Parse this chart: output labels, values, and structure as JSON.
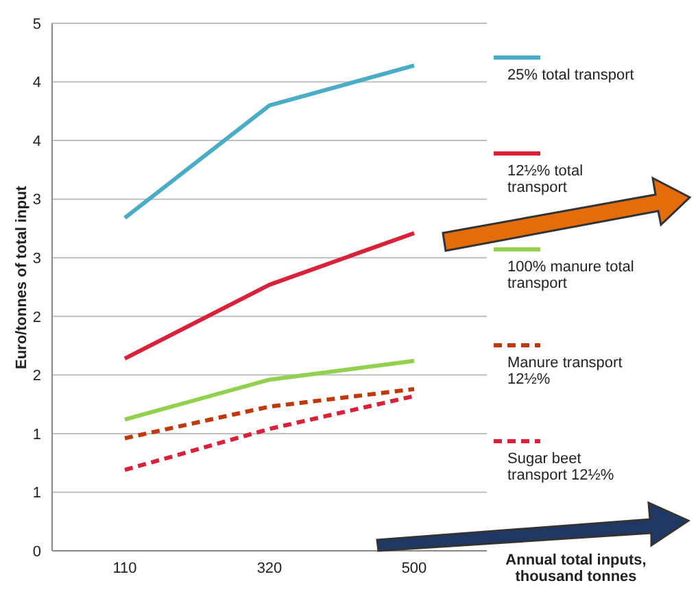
{
  "chart_data": {
    "type": "line",
    "xlabel": "Annual total inputs, thousand tonnes",
    "ylabel": "Euro/tonnes of total input",
    "categories": [
      "110",
      "320",
      "500"
    ],
    "series": [
      {
        "name": "25% total transport",
        "color": "#4bacc6",
        "values": [
          2.84,
          3.8,
          4.14
        ],
        "line_style": "solid"
      },
      {
        "name": "12½% total transport",
        "color": "#d9213a",
        "values": [
          1.64,
          2.27,
          2.71
        ],
        "line_style": "solid"
      },
      {
        "name": "100% manure total transport",
        "color": "#92d050",
        "values": [
          1.12,
          1.46,
          1.62
        ],
        "line_style": "solid"
      },
      {
        "name": "Manure transport 12½%",
        "color": "#c0390b",
        "values": [
          0.96,
          1.23,
          1.38
        ],
        "line_style": "dashed"
      },
      {
        "name": "Sugar beet transport 12½%",
        "color": "#d9213a",
        "values": [
          0.69,
          1.04,
          1.32
        ],
        "line_style": "dashed"
      }
    ],
    "ylim": [
      0,
      4.5
    ],
    "yticks": [
      0,
      {
        "value": 0.5,
        "label": "1"
      },
      1,
      {
        "value": 1.5,
        "label": "2"
      },
      2,
      {
        "value": 2.5,
        "label": "3"
      },
      3,
      {
        "value": 3.5,
        "label": "4"
      },
      4,
      {
        "value": 4.5,
        "label": "5"
      }
    ],
    "grid": "y",
    "legend": "right",
    "marker": "none"
  }
}
